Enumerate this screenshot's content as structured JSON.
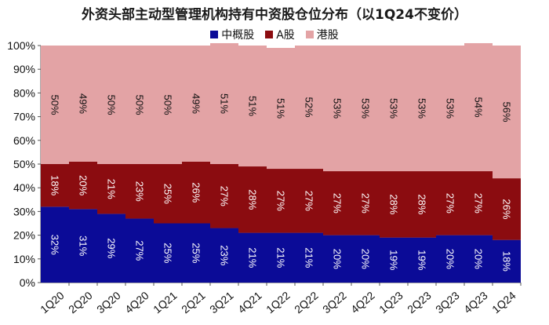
{
  "colors": {
    "china_concept": "#0b0b97",
    "a_share": "#8b0c10",
    "hk_share": "#e3a3a5"
  },
  "chart_data": {
    "type": "bar",
    "stacked": true,
    "title": "外资头部主动型管理机构持有中资股仓位分布（以1Q24不变价）",
    "xlabel": "",
    "ylabel": "",
    "ylim": [
      0,
      100
    ],
    "yticks": [
      "0%",
      "10%",
      "20%",
      "30%",
      "40%",
      "50%",
      "60%",
      "70%",
      "80%",
      "90%",
      "100%"
    ],
    "legend_position": "top-center",
    "grid": false,
    "categories": [
      "1Q20",
      "2Q20",
      "3Q20",
      "4Q20",
      "1Q21",
      "2Q21",
      "3Q21",
      "4Q21",
      "1Q22",
      "2Q22",
      "3Q22",
      "4Q22",
      "1Q23",
      "2Q23",
      "3Q23",
      "4Q23",
      "1Q24"
    ],
    "series": [
      {
        "name": "中概股",
        "color": "#0b0b97",
        "values": [
          32,
          31,
          29,
          27,
          25,
          25,
          23,
          21,
          21,
          21,
          20,
          20,
          19,
          19,
          20,
          20,
          18
        ]
      },
      {
        "name": "A股",
        "color": "#8b0c10",
        "values": [
          18,
          20,
          21,
          23,
          25,
          26,
          27,
          28,
          27,
          27,
          27,
          27,
          28,
          28,
          27,
          27,
          26
        ]
      },
      {
        "name": "港股",
        "color": "#e3a3a5",
        "values": [
          50,
          49,
          50,
          50,
          50,
          49,
          51,
          51,
          51,
          52,
          53,
          53,
          53,
          53,
          53,
          54,
          56
        ]
      }
    ]
  }
}
